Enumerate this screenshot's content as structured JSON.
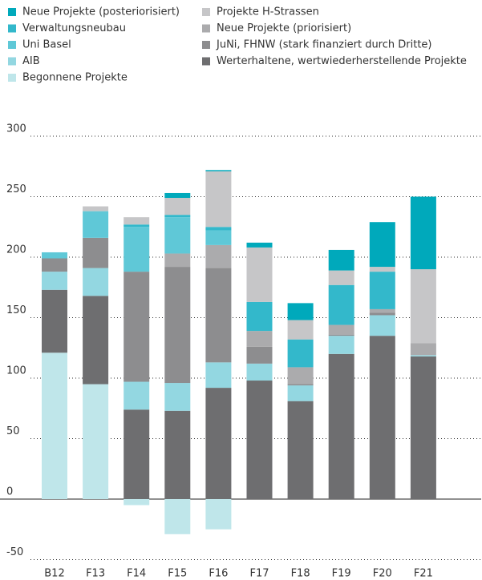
{
  "chart_data": {
    "type": "bar",
    "stacked": true,
    "categories": [
      "B12",
      "F13",
      "F14",
      "F15",
      "F16",
      "F17",
      "F18",
      "F19",
      "F20",
      "F21"
    ],
    "series": [
      {
        "name": "Begonnene Projekte",
        "color": "#bfe6ea",
        "values": [
          121,
          95,
          -5,
          -29,
          -25,
          0,
          0,
          0,
          0,
          0
        ]
      },
      {
        "name": "Werterhaltene, wertwiederherstellende Projekte",
        "color": "#6e6e70",
        "values": [
          52,
          73,
          74,
          73,
          92,
          98,
          81,
          120,
          135,
          118
        ]
      },
      {
        "name": "AIB",
        "color": "#93d7e1",
        "values": [
          15,
          23,
          23,
          23,
          21,
          14,
          13,
          15,
          17,
          1
        ]
      },
      {
        "name": "JuNi, FHNW (stark finanziert durch Dritte)",
        "color": "#8d8d8f",
        "values": [
          11,
          25,
          91,
          96,
          78,
          14,
          1,
          1,
          2,
          0
        ]
      },
      {
        "name": "Neue Projekte (priorisiert)",
        "color": "#ababad",
        "values": [
          0,
          0,
          0,
          11,
          19,
          13,
          14,
          8,
          3,
          10
        ]
      },
      {
        "name": "Uni Basel",
        "color": "#5fc8d7",
        "values": [
          5,
          22,
          37,
          30,
          12,
          0,
          0,
          0,
          0,
          0
        ]
      },
      {
        "name": "Verwaltungsneubau",
        "color": "#33b8cb",
        "values": [
          0,
          0,
          2,
          2,
          3,
          24,
          23,
          33,
          31,
          0
        ]
      },
      {
        "name": "Projekte H-Strassen",
        "color": "#c6c6c8",
        "values": [
          0,
          4,
          6,
          14,
          46,
          45,
          16,
          12,
          4,
          61
        ]
      },
      {
        "name": "Neue Projekte (posteriorisiert)",
        "color": "#00a9bb",
        "values": [
          0,
          0,
          0,
          4,
          1,
          4,
          14,
          17,
          37,
          60
        ]
      }
    ],
    "legend_order": [
      8,
      6,
      5,
      2,
      0,
      7,
      4,
      3,
      1
    ],
    "ylim": [
      -60,
      310
    ],
    "yticks": [
      -50,
      0,
      50,
      100,
      150,
      200,
      250,
      300
    ],
    "grid": true
  }
}
